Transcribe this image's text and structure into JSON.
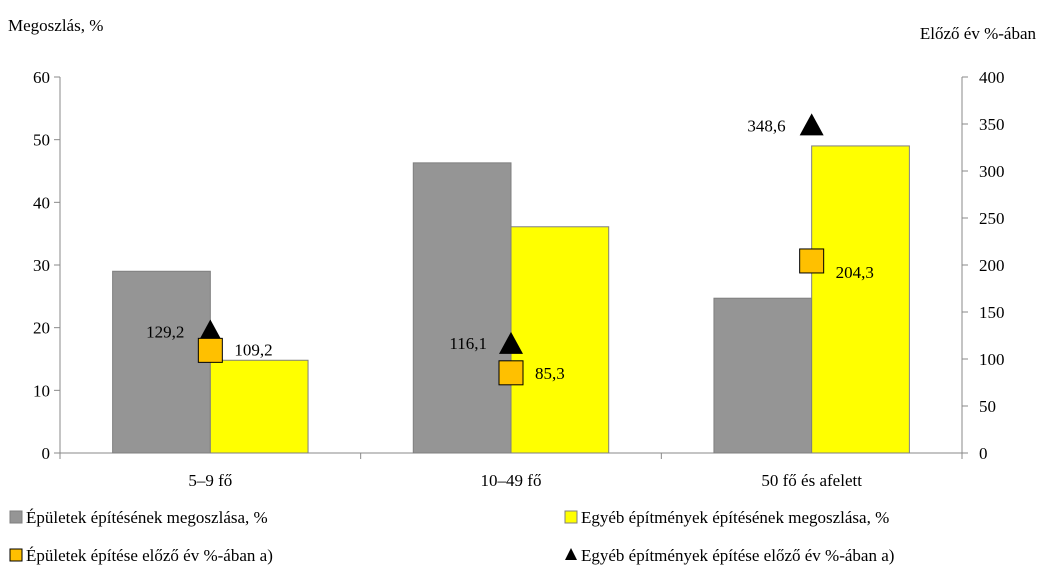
{
  "chart_data": {
    "type": "bar",
    "categories": [
      "5–9 fő",
      "10–49 fő",
      "50 fő és afelett"
    ],
    "y_left": {
      "label": "Megoszlás, %",
      "ylim": [
        0,
        60
      ],
      "ticks": [
        "0",
        "10",
        "20",
        "30",
        "40",
        "50",
        "60"
      ]
    },
    "y_right": {
      "label": "Előző év %-ában",
      "ylim": [
        0,
        400
      ],
      "ticks": [
        "0",
        "50",
        "100",
        "150",
        "200",
        "250",
        "300",
        "350",
        "400"
      ]
    },
    "series": [
      {
        "name": "Épületek építésének megoszlása, %",
        "kind": "bar",
        "axis": "left",
        "color": "#959595",
        "values": [
          29,
          46.3,
          24.7
        ]
      },
      {
        "name": "Egyéb építmények építésének megoszlása, %",
        "kind": "bar",
        "axis": "left",
        "color": "#ffff00",
        "values": [
          14.8,
          36.1,
          49
        ]
      },
      {
        "name": "Épületek építése előző év %-ában a)",
        "kind": "marker",
        "marker": "square",
        "axis": "right",
        "color": "#ffc000",
        "values": [
          109.2,
          85.3,
          204.3
        ],
        "labels": [
          "109,2",
          "85,3",
          "204,3"
        ]
      },
      {
        "name": "Egyéb építmények építése előző év %-ában a)",
        "kind": "marker",
        "marker": "triangle",
        "axis": "right",
        "color": "#000000",
        "values": [
          129.2,
          116.1,
          348.6
        ],
        "labels": [
          "129,2",
          "116,1",
          "348,6"
        ]
      }
    ],
    "grid": false,
    "legend_position": "bottom"
  }
}
